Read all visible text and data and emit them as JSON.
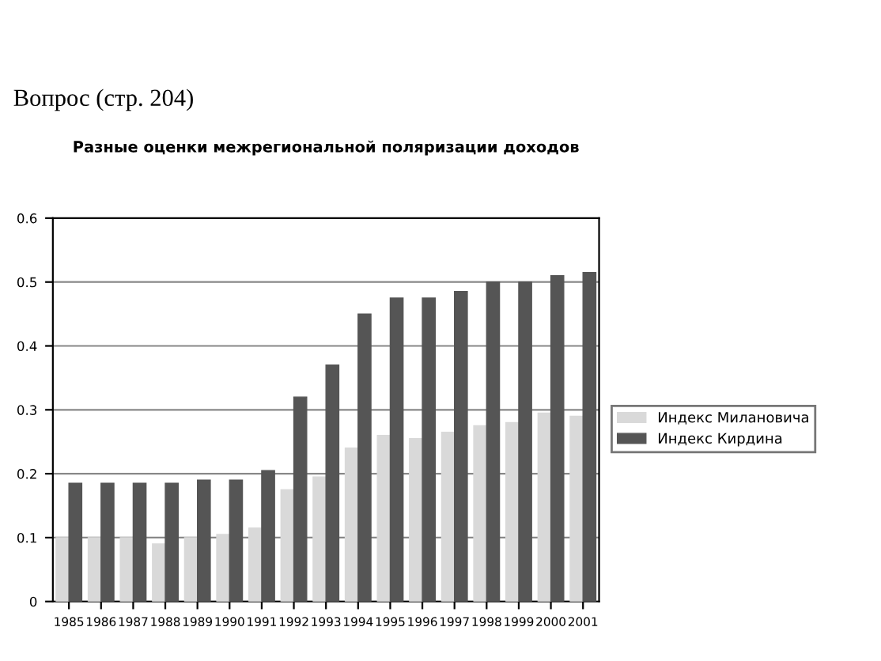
{
  "chart_data": {
    "type": "bar",
    "title": "Разные оценки межрегиональной поляризации доходов",
    "annotations": [
      "Вопрос (стр. 204)"
    ],
    "categories": [
      "1985",
      "1986",
      "1987",
      "1988",
      "1989",
      "1990",
      "1991",
      "1992",
      "1993",
      "1994",
      "1995",
      "1996",
      "1997",
      "1998",
      "1999",
      "2000",
      "2001"
    ],
    "series": [
      {
        "name": "Индекс Милановича",
        "color": "#d9d9d9",
        "values": [
          0.1,
          0.1,
          0.1,
          0.09,
          0.1,
          0.105,
          0.115,
          0.175,
          0.195,
          0.24,
          0.26,
          0.255,
          0.265,
          0.275,
          0.28,
          0.295,
          0.29
        ]
      },
      {
        "name": "Индекс Кирдина",
        "color": "#555555",
        "values": [
          0.185,
          0.185,
          0.185,
          0.185,
          0.19,
          0.19,
          0.205,
          0.32,
          0.37,
          0.45,
          0.475,
          0.475,
          0.485,
          0.5,
          0.5,
          0.51,
          0.515
        ]
      }
    ],
    "ylim": [
      0,
      0.6
    ],
    "yticks": [
      0,
      0.1,
      0.2,
      0.3,
      0.4,
      0.5,
      0.6
    ],
    "grid": "y",
    "legend": "right"
  }
}
